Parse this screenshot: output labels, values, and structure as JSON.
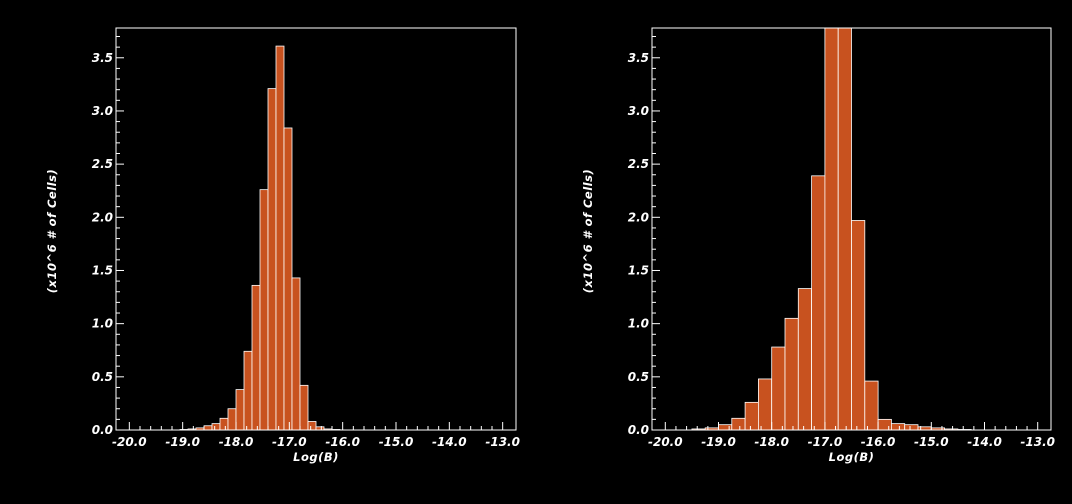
{
  "colors": {
    "background": "#000000",
    "bar_fill": "#c8521f",
    "bar_edge": "#ffffff",
    "axis": "#ffffff"
  },
  "chart_data": [
    {
      "type": "bar",
      "xlabel": "Log(B)",
      "ylabel": "(x10^6 # of Cells)",
      "xlim": [
        -20.25,
        -12.75
      ],
      "ylim": [
        0,
        3.78
      ],
      "xticks": [
        -20.0,
        -19.0,
        -18.0,
        -17.0,
        -16.0,
        -15.0,
        -14.0,
        -13.0
      ],
      "xtick_labels": [
        "-20.0",
        "-19.0",
        "-18.0",
        "-17.0",
        "-16.0",
        "-15.0",
        "-14.0",
        "-13.0"
      ],
      "yticks": [
        0.0,
        0.5,
        1.0,
        1.5,
        2.0,
        2.5,
        3.0,
        3.5
      ],
      "ytick_labels": [
        "0.0",
        "0.5",
        "1.0",
        "1.5",
        "2.0",
        "2.5",
        "3.0",
        "3.5"
      ],
      "bin_width": 0.15,
      "x": [
        -18.975,
        -18.825,
        -18.675,
        -18.525,
        -18.375,
        -18.225,
        -18.075,
        -17.925,
        -17.775,
        -17.625,
        -17.475,
        -17.325,
        -17.175,
        -17.025,
        -16.875,
        -16.725,
        -16.575,
        -16.425,
        -16.275,
        -16.125
      ],
      "values": [
        0.005,
        0.01,
        0.02,
        0.04,
        0.06,
        0.11,
        0.2,
        0.38,
        0.74,
        1.36,
        2.26,
        3.21,
        3.61,
        2.84,
        1.43,
        0.42,
        0.08,
        0.03,
        0.01,
        0.005
      ]
    },
    {
      "type": "bar",
      "xlabel": "Log(B)",
      "ylabel": "(x10^6 # of Cells)",
      "xlim": [
        -20.25,
        -12.75
      ],
      "ylim": [
        0,
        3.78
      ],
      "xticks": [
        -20.0,
        -19.0,
        -18.0,
        -17.0,
        -16.0,
        -15.0,
        -14.0,
        -13.0
      ],
      "xtick_labels": [
        "-20.0",
        "-19.0",
        "-18.0",
        "-17.0",
        "-16.0",
        "-15.0",
        "-14.0",
        "-13.0"
      ],
      "yticks": [
        0.0,
        0.5,
        1.0,
        1.5,
        2.0,
        2.5,
        3.0,
        3.5
      ],
      "ytick_labels": [
        "0.0",
        "0.5",
        "1.0",
        "1.5",
        "2.0",
        "2.5",
        "3.0",
        "3.5"
      ],
      "bin_width": 0.25,
      "x": [
        -19.375,
        -19.125,
        -18.875,
        -18.625,
        -18.375,
        -18.125,
        -17.875,
        -17.625,
        -17.375,
        -17.125,
        -16.875,
        -16.625,
        -16.375,
        -16.125,
        -15.875,
        -15.625,
        -15.375,
        -15.125,
        -14.875,
        -14.625,
        -14.375
      ],
      "values": [
        0.01,
        0.02,
        0.05,
        0.11,
        0.26,
        0.48,
        0.78,
        1.05,
        1.33,
        2.39,
        3.78,
        3.78,
        1.97,
        0.46,
        0.1,
        0.06,
        0.05,
        0.03,
        0.02,
        0.01,
        0.005
      ]
    }
  ]
}
